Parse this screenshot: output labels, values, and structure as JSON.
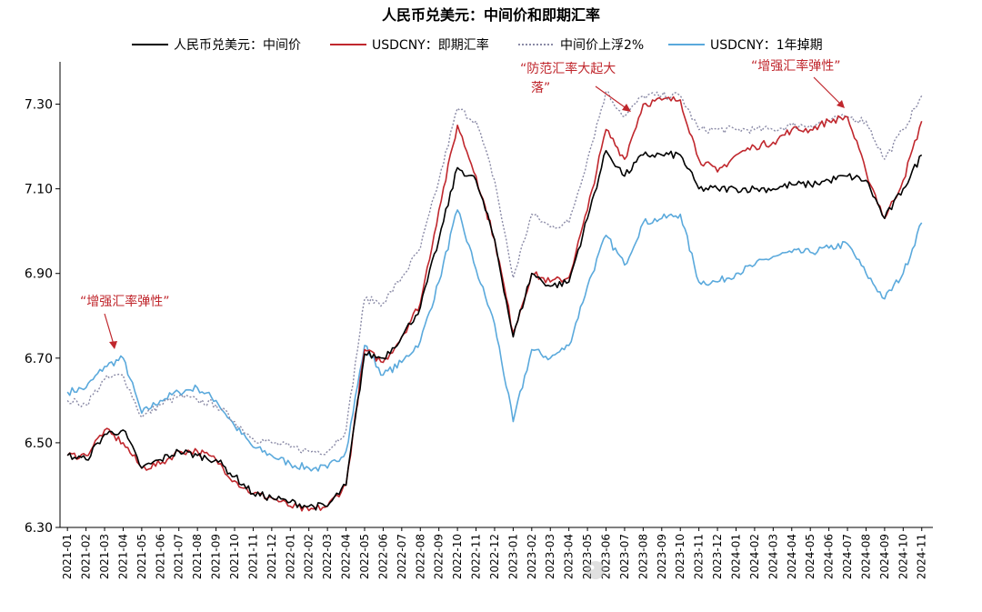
{
  "chart_data": {
    "type": "line",
    "title": "人民币兑美元：中间价和即期汇率",
    "xlabel": "",
    "ylabel": "",
    "ylim": [
      6.3,
      7.4
    ],
    "yticks": [
      6.3,
      6.5,
      6.7,
      6.9,
      7.1,
      7.3
    ],
    "ytick_labels": [
      "6.30",
      "6.50",
      "6.70",
      "6.90",
      "7.10",
      "7.30"
    ],
    "grid": false,
    "legend_position": "top",
    "x_range": [
      "2021-01",
      "2024-11"
    ],
    "x": [
      "2021-01",
      "2021-02",
      "2021-03",
      "2021-04",
      "2021-05",
      "2021-06",
      "2021-07",
      "2021-08",
      "2021-09",
      "2021-10",
      "2021-11",
      "2021-12",
      "2022-01",
      "2022-02",
      "2022-03",
      "2022-04",
      "2022-05",
      "2022-06",
      "2022-07",
      "2022-08",
      "2022-09",
      "2022-10",
      "2022-11",
      "2022-12",
      "2023-01",
      "2023-02",
      "2023-03",
      "2023-04",
      "2023-05",
      "2023-06",
      "2023-07",
      "2023-08",
      "2023-09",
      "2023-10",
      "2023-11",
      "2023-12",
      "2024-01",
      "2024-02",
      "2024-03",
      "2024-04",
      "2024-05",
      "2024-06",
      "2024-07",
      "2024-08",
      "2024-09",
      "2024-10",
      "2024-11"
    ],
    "series": [
      {
        "name": "人民币兑美元：中间价",
        "color": "#000000",
        "style": "solid",
        "values": [
          6.47,
          6.46,
          6.52,
          6.53,
          6.44,
          6.46,
          6.48,
          6.47,
          6.46,
          6.42,
          6.38,
          6.37,
          6.36,
          6.35,
          6.35,
          6.4,
          6.71,
          6.7,
          6.75,
          6.82,
          6.98,
          7.15,
          7.12,
          6.98,
          6.75,
          6.9,
          6.87,
          6.88,
          7.03,
          7.19,
          7.13,
          7.18,
          7.18,
          7.18,
          7.1,
          7.1,
          7.1,
          7.1,
          7.1,
          7.11,
          7.11,
          7.12,
          7.13,
          7.12,
          7.03,
          7.1,
          7.18
        ]
      },
      {
        "name": "USDCNY：即期汇率",
        "color": "#c0272d",
        "style": "solid",
        "values": [
          6.47,
          6.47,
          6.53,
          6.5,
          6.44,
          6.45,
          6.48,
          6.48,
          6.46,
          6.41,
          6.38,
          6.37,
          6.35,
          6.34,
          6.35,
          6.4,
          6.72,
          6.69,
          6.75,
          6.83,
          7.05,
          7.25,
          7.13,
          6.98,
          6.76,
          6.9,
          6.88,
          6.89,
          7.05,
          7.24,
          7.17,
          7.3,
          7.31,
          7.31,
          7.17,
          7.14,
          7.18,
          7.2,
          7.21,
          7.24,
          7.24,
          7.26,
          7.27,
          7.14,
          7.03,
          7.12,
          7.26
        ]
      },
      {
        "name": "中间价上浮2%",
        "color": "#8a8aa6",
        "style": "dotted",
        "values": [
          6.6,
          6.59,
          6.65,
          6.66,
          6.56,
          6.59,
          6.61,
          6.6,
          6.59,
          6.55,
          6.51,
          6.5,
          6.49,
          6.48,
          6.48,
          6.53,
          6.84,
          6.83,
          6.89,
          6.96,
          7.12,
          7.29,
          7.26,
          7.12,
          6.89,
          7.04,
          7.01,
          7.02,
          7.17,
          7.33,
          7.27,
          7.32,
          7.32,
          7.32,
          7.24,
          7.24,
          7.24,
          7.24,
          7.24,
          7.25,
          7.25,
          7.26,
          7.27,
          7.26,
          7.17,
          7.24,
          7.32
        ]
      },
      {
        "name": "USDCNY：1年掉期",
        "color": "#5aa9dc",
        "style": "solid",
        "values": [
          6.62,
          6.63,
          6.68,
          6.7,
          6.57,
          6.6,
          6.62,
          6.63,
          6.6,
          6.54,
          6.49,
          6.47,
          6.45,
          6.44,
          6.44,
          6.48,
          6.73,
          6.66,
          6.69,
          6.74,
          6.88,
          7.05,
          6.91,
          6.78,
          6.55,
          6.72,
          6.7,
          6.73,
          6.87,
          6.99,
          6.92,
          7.02,
          7.03,
          7.04,
          6.88,
          6.88,
          6.9,
          6.92,
          6.94,
          6.95,
          6.95,
          6.96,
          6.97,
          6.9,
          6.84,
          6.9,
          7.02
        ]
      }
    ],
    "annotations": [
      {
        "text": "“增强汇率弹性”",
        "near": "2021-03",
        "color": "#c0272d"
      },
      {
        "text_lines": [
          "“防范汇率大起大",
          "落”"
        ],
        "near": "2023-07",
        "color": "#c0272d"
      },
      {
        "text": "“增强汇率弹性”",
        "near": "2024-06",
        "color": "#c0272d"
      }
    ]
  }
}
